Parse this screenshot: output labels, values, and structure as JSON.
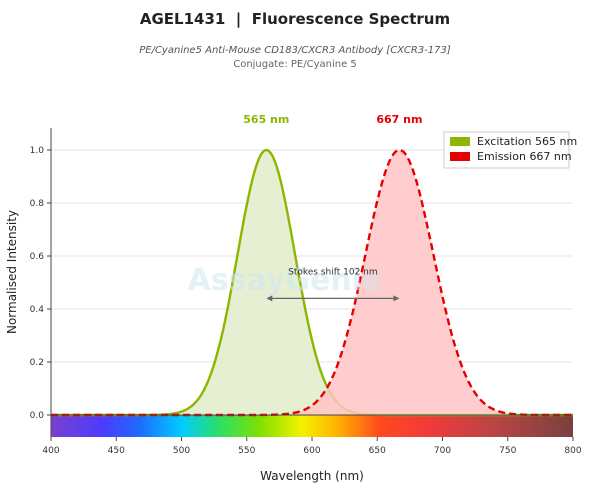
{
  "header": {
    "title": "AGEL1431  |  Fluorescence Spectrum",
    "subtitle": "PE/Cyanine5 Anti-Mouse CD183/CXCR3 Antibody [CXCR3-173]",
    "conjugate": "Conjugate: PE/Cyanine 5"
  },
  "watermark": "AssayGenie",
  "chart_data": {
    "type": "area",
    "xlabel": "Wavelength (nm)",
    "ylabel": "Normalised Intensity",
    "xlim": [
      400,
      800
    ],
    "ylim": [
      0,
      1.05
    ],
    "x_ticks": [
      "400",
      "450",
      "500",
      "550",
      "600",
      "650",
      "700",
      "750",
      "800"
    ],
    "y_ticks": [
      "0.0",
      "0.2",
      "0.4",
      "0.6",
      "0.8",
      "1.0"
    ],
    "grid": true,
    "legend_position": "top-right",
    "series": [
      {
        "name": "Excitation  565 nm",
        "peak": 565,
        "sigma": 22,
        "color": "#8db600",
        "fill": "#e3eccb",
        "dash": false,
        "peak_label": "565 nm"
      },
      {
        "name": "Emission  667 nm",
        "peak": 667,
        "sigma": 26,
        "color": "#e60000",
        "fill": "#ffc4c4",
        "dash": true,
        "peak_label": "667 nm"
      }
    ],
    "annotation": {
      "text": "Stokes shift  102 nm",
      "from": 565,
      "to": 667,
      "y": 0.44
    },
    "spectrum_bar": true
  }
}
